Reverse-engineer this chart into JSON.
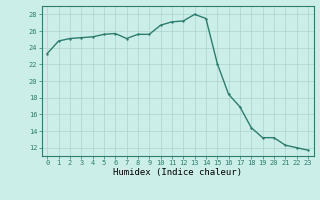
{
  "x": [
    0,
    1,
    2,
    3,
    4,
    5,
    6,
    7,
    8,
    9,
    10,
    11,
    12,
    13,
    14,
    15,
    16,
    17,
    18,
    19,
    20,
    21,
    22,
    23
  ],
  "y": [
    23.3,
    24.8,
    25.1,
    25.2,
    25.3,
    25.6,
    25.7,
    25.1,
    25.6,
    25.6,
    26.7,
    27.1,
    27.2,
    28.0,
    27.5,
    22.1,
    18.4,
    16.9,
    14.4,
    13.2,
    13.2,
    12.3,
    12.0,
    11.7
  ],
  "line_color": "#2d7d6e",
  "marker_color": "#2d7d6e",
  "background_color": "#cceee8",
  "grid_color": "#aad4ce",
  "xlabel": "Humidex (Indice chaleur)",
  "xlim": [
    -0.5,
    23.5
  ],
  "ylim": [
    11,
    29
  ],
  "yticks": [
    12,
    14,
    16,
    18,
    20,
    22,
    24,
    26,
    28
  ],
  "xticks": [
    0,
    1,
    2,
    3,
    4,
    5,
    6,
    7,
    8,
    9,
    10,
    11,
    12,
    13,
    14,
    15,
    16,
    17,
    18,
    19,
    20,
    21,
    22,
    23
  ],
  "xtick_labels": [
    "0",
    "1",
    "2",
    "3",
    "4",
    "5",
    "6",
    "7",
    "8",
    "9",
    "10",
    "11",
    "12",
    "13",
    "14",
    "15",
    "16",
    "17",
    "18",
    "19",
    "20",
    "21",
    "22",
    "23"
  ],
  "tick_fontsize": 5.0,
  "xlabel_fontsize": 6.5,
  "linewidth": 1.0,
  "markersize": 2.0
}
